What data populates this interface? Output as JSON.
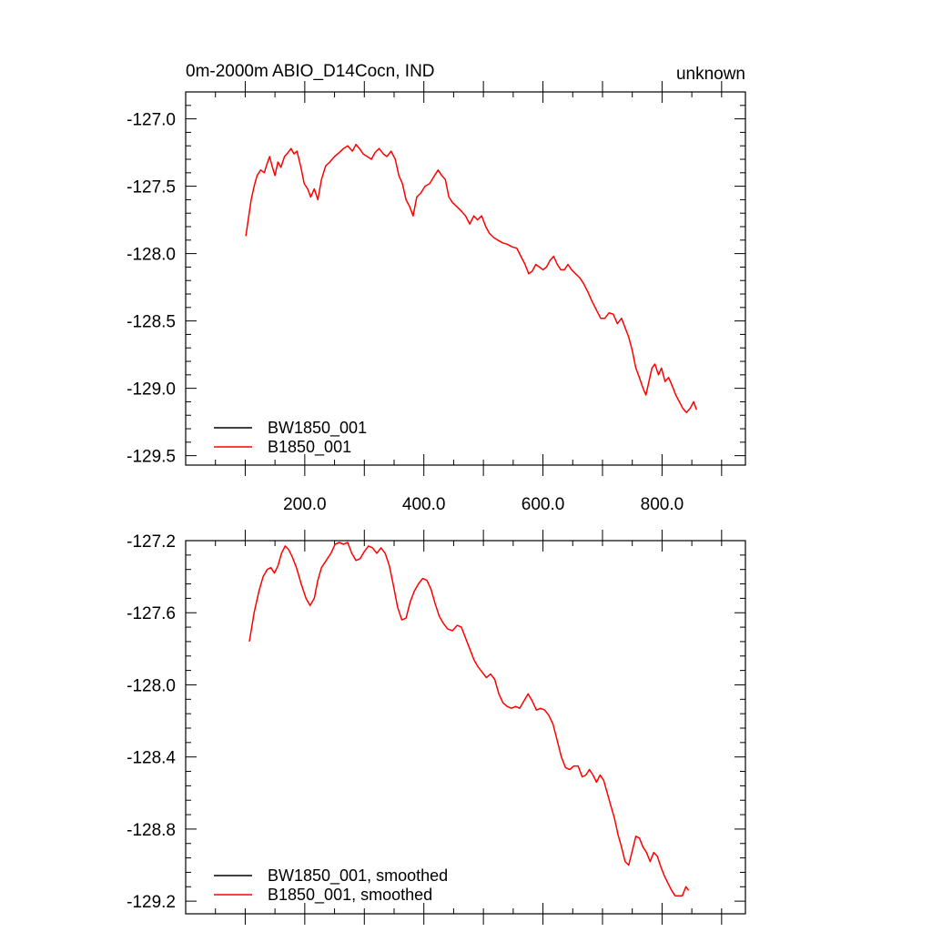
{
  "chart_data": [
    {
      "type": "line",
      "title": "0m-2000m ABIO_D14Cocn, IND",
      "title_right": "unknown",
      "xlim": [
        0,
        940
      ],
      "ylim": [
        -129.57,
        -126.8
      ],
      "x_ticks": [
        200,
        400,
        600,
        800
      ],
      "x_tick_labels": [
        "200.0",
        "400.0",
        "600.0",
        "800.0"
      ],
      "y_ticks": [
        -127.0,
        -127.5,
        -128.0,
        -128.5,
        -129.0,
        -129.5
      ],
      "y_tick_labels": [
        "-127.0",
        "-127.5",
        "-128.0",
        "-128.5",
        "-129.0",
        "-129.5"
      ],
      "legend_position": "bottom-left",
      "colors": {
        "BW1850_001": "#000000",
        "B1850_001": "#ff0000"
      },
      "series": [
        {
          "name": "BW1850_001",
          "values": []
        },
        {
          "name": "B1850_001",
          "points": [
            [
              101,
              -127.87
            ],
            [
              105,
              -127.75
            ],
            [
              110,
              -127.6
            ],
            [
              115,
              -127.5
            ],
            [
              120,
              -127.42
            ],
            [
              126,
              -127.38
            ],
            [
              132,
              -127.4
            ],
            [
              137,
              -127.33
            ],
            [
              141,
              -127.28
            ],
            [
              145,
              -127.35
            ],
            [
              150,
              -127.42
            ],
            [
              155,
              -127.32
            ],
            [
              160,
              -127.36
            ],
            [
              166,
              -127.28
            ],
            [
              172,
              -127.25
            ],
            [
              177,
              -127.22
            ],
            [
              182,
              -127.26
            ],
            [
              187,
              -127.24
            ],
            [
              193,
              -127.35
            ],
            [
              199,
              -127.48
            ],
            [
              205,
              -127.52
            ],
            [
              210,
              -127.58
            ],
            [
              216,
              -127.52
            ],
            [
              222,
              -127.6
            ],
            [
              228,
              -127.45
            ],
            [
              235,
              -127.35
            ],
            [
              242,
              -127.32
            ],
            [
              250,
              -127.28
            ],
            [
              258,
              -127.25
            ],
            [
              265,
              -127.22
            ],
            [
              272,
              -127.2
            ],
            [
              280,
              -127.24
            ],
            [
              286,
              -127.19
            ],
            [
              292,
              -127.22
            ],
            [
              298,
              -127.26
            ],
            [
              305,
              -127.28
            ],
            [
              312,
              -127.3
            ],
            [
              318,
              -127.25
            ],
            [
              325,
              -127.22
            ],
            [
              332,
              -127.26
            ],
            [
              338,
              -127.28
            ],
            [
              345,
              -127.24
            ],
            [
              352,
              -127.3
            ],
            [
              358,
              -127.42
            ],
            [
              364,
              -127.48
            ],
            [
              370,
              -127.6
            ],
            [
              376,
              -127.65
            ],
            [
              382,
              -127.72
            ],
            [
              388,
              -127.58
            ],
            [
              395,
              -127.55
            ],
            [
              402,
              -127.5
            ],
            [
              410,
              -127.48
            ],
            [
              418,
              -127.42
            ],
            [
              424,
              -127.38
            ],
            [
              430,
              -127.42
            ],
            [
              436,
              -127.45
            ],
            [
              442,
              -127.58
            ],
            [
              448,
              -127.62
            ],
            [
              455,
              -127.65
            ],
            [
              462,
              -127.68
            ],
            [
              470,
              -127.72
            ],
            [
              477,
              -127.78
            ],
            [
              484,
              -127.72
            ],
            [
              490,
              -127.75
            ],
            [
              497,
              -127.72
            ],
            [
              504,
              -127.8
            ],
            [
              510,
              -127.85
            ],
            [
              517,
              -127.88
            ],
            [
              524,
              -127.9
            ],
            [
              532,
              -127.92
            ],
            [
              540,
              -127.93
            ],
            [
              548,
              -127.95
            ],
            [
              556,
              -127.96
            ],
            [
              563,
              -128.02
            ],
            [
              570,
              -128.08
            ],
            [
              576,
              -128.15
            ],
            [
              582,
              -128.13
            ],
            [
              588,
              -128.08
            ],
            [
              594,
              -128.1
            ],
            [
              600,
              -128.12
            ],
            [
              606,
              -128.1
            ],
            [
              612,
              -128.05
            ],
            [
              618,
              -128.02
            ],
            [
              624,
              -128.08
            ],
            [
              630,
              -128.12
            ],
            [
              636,
              -128.12
            ],
            [
              642,
              -128.08
            ],
            [
              648,
              -128.12
            ],
            [
              655,
              -128.15
            ],
            [
              662,
              -128.18
            ],
            [
              668,
              -128.22
            ],
            [
              675,
              -128.28
            ],
            [
              682,
              -128.35
            ],
            [
              690,
              -128.42
            ],
            [
              697,
              -128.48
            ],
            [
              704,
              -128.48
            ],
            [
              711,
              -128.44
            ],
            [
              718,
              -128.45
            ],
            [
              725,
              -128.52
            ],
            [
              732,
              -128.48
            ],
            [
              738,
              -128.55
            ],
            [
              744,
              -128.62
            ],
            [
              750,
              -128.72
            ],
            [
              756,
              -128.85
            ],
            [
              762,
              -128.92
            ],
            [
              768,
              -129.0
            ],
            [
              773,
              -129.05
            ],
            [
              778,
              -128.95
            ],
            [
              783,
              -128.85
            ],
            [
              788,
              -128.82
            ],
            [
              794,
              -128.9
            ],
            [
              799,
              -128.85
            ],
            [
              805,
              -128.95
            ],
            [
              811,
              -128.92
            ],
            [
              817,
              -128.98
            ],
            [
              823,
              -129.05
            ],
            [
              829,
              -129.1
            ],
            [
              835,
              -129.15
            ],
            [
              841,
              -129.18
            ],
            [
              847,
              -129.15
            ],
            [
              853,
              -129.1
            ],
            [
              858,
              -129.16
            ]
          ]
        }
      ]
    },
    {
      "type": "line",
      "xlim": [
        0,
        940
      ],
      "ylim": [
        -129.27,
        -127.2
      ],
      "y_ticks": [
        -127.2,
        -127.6,
        -128.0,
        -128.4,
        -128.8,
        -129.2
      ],
      "y_tick_labels": [
        "-127.2",
        "-127.6",
        "-128.0",
        "-128.4",
        "-128.8",
        "-129.2"
      ],
      "legend_position": "bottom-left",
      "colors": {
        "BW1850_001, smoothed": "#000000",
        "B1850_001, smoothed": "#ff0000"
      },
      "series": [
        {
          "name": "BW1850_001, smoothed",
          "values": []
        },
        {
          "name": "B1850_001, smoothed",
          "points": [
            [
              107,
              -127.76
            ],
            [
              115,
              -127.6
            ],
            [
              123,
              -127.48
            ],
            [
              130,
              -127.4
            ],
            [
              137,
              -127.36
            ],
            [
              143,
              -127.35
            ],
            [
              149,
              -127.38
            ],
            [
              155,
              -127.34
            ],
            [
              161,
              -127.27
            ],
            [
              167,
              -127.23
            ],
            [
              173,
              -127.25
            ],
            [
              179,
              -127.29
            ],
            [
              186,
              -127.35
            ],
            [
              194,
              -127.44
            ],
            [
              202,
              -127.52
            ],
            [
              209,
              -127.56
            ],
            [
              216,
              -127.52
            ],
            [
              222,
              -127.42
            ],
            [
              228,
              -127.35
            ],
            [
              236,
              -127.31
            ],
            [
              244,
              -127.27
            ],
            [
              251,
              -127.22
            ],
            [
              258,
              -127.21
            ],
            [
              265,
              -127.22
            ],
            [
              272,
              -127.21
            ],
            [
              279,
              -127.27
            ],
            [
              286,
              -127.31
            ],
            [
              293,
              -127.3
            ],
            [
              300,
              -127.26
            ],
            [
              307,
              -127.23
            ],
            [
              314,
              -127.24
            ],
            [
              321,
              -127.27
            ],
            [
              328,
              -127.24
            ],
            [
              335,
              -127.27
            ],
            [
              342,
              -127.34
            ],
            [
              349,
              -127.45
            ],
            [
              356,
              -127.57
            ],
            [
              363,
              -127.64
            ],
            [
              370,
              -127.63
            ],
            [
              377,
              -127.54
            ],
            [
              384,
              -127.48
            ],
            [
              391,
              -127.44
            ],
            [
              398,
              -127.41
            ],
            [
              405,
              -127.42
            ],
            [
              412,
              -127.47
            ],
            [
              419,
              -127.55
            ],
            [
              426,
              -127.62
            ],
            [
              433,
              -127.66
            ],
            [
              440,
              -127.69
            ],
            [
              448,
              -127.7
            ],
            [
              456,
              -127.67
            ],
            [
              463,
              -127.68
            ],
            [
              470,
              -127.74
            ],
            [
              477,
              -127.8
            ],
            [
              484,
              -127.86
            ],
            [
              491,
              -127.9
            ],
            [
              498,
              -127.93
            ],
            [
              505,
              -127.96
            ],
            [
              512,
              -127.94
            ],
            [
              519,
              -127.97
            ],
            [
              526,
              -128.05
            ],
            [
              533,
              -128.1
            ],
            [
              540,
              -128.12
            ],
            [
              547,
              -128.13
            ],
            [
              554,
              -128.12
            ],
            [
              561,
              -128.13
            ],
            [
              568,
              -128.09
            ],
            [
              575,
              -128.05
            ],
            [
              582,
              -128.09
            ],
            [
              589,
              -128.14
            ],
            [
              596,
              -128.13
            ],
            [
              603,
              -128.14
            ],
            [
              610,
              -128.17
            ],
            [
              617,
              -128.22
            ],
            [
              624,
              -128.31
            ],
            [
              631,
              -128.4
            ],
            [
              638,
              -128.46
            ],
            [
              645,
              -128.47
            ],
            [
              652,
              -128.45
            ],
            [
              659,
              -128.45
            ],
            [
              666,
              -128.51
            ],
            [
              672,
              -128.5
            ],
            [
              678,
              -128.47
            ],
            [
              684,
              -128.5
            ],
            [
              690,
              -128.54
            ],
            [
              696,
              -128.5
            ],
            [
              702,
              -128.53
            ],
            [
              708,
              -128.6
            ],
            [
              714,
              -128.67
            ],
            [
              720,
              -128.74
            ],
            [
              726,
              -128.83
            ],
            [
              732,
              -128.9
            ],
            [
              738,
              -128.98
            ],
            [
              744,
              -129.0
            ],
            [
              750,
              -128.92
            ],
            [
              756,
              -128.84
            ],
            [
              762,
              -128.85
            ],
            [
              768,
              -128.9
            ],
            [
              774,
              -128.93
            ],
            [
              780,
              -128.98
            ],
            [
              786,
              -128.93
            ],
            [
              792,
              -128.95
            ],
            [
              798,
              -129.01
            ],
            [
              804,
              -129.06
            ],
            [
              810,
              -129.1
            ],
            [
              816,
              -129.14
            ],
            [
              822,
              -129.17
            ],
            [
              828,
              -129.17
            ],
            [
              834,
              -129.17
            ],
            [
              840,
              -129.12
            ],
            [
              845,
              -129.14
            ]
          ]
        }
      ]
    }
  ]
}
